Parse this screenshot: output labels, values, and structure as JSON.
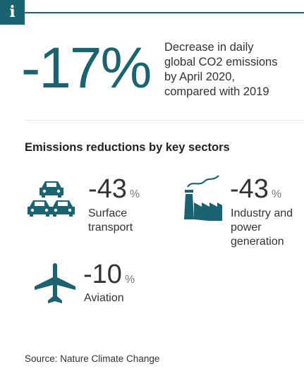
{
  "header": {
    "info_glyph": "i"
  },
  "headline": {
    "value": "-17%",
    "description_lines": [
      "Decrease in daily",
      "global CO2 emissions",
      "by April 2020,",
      "compared with 2019"
    ]
  },
  "sectors_heading": "Emissions reductions by key sectors",
  "sectors": [
    {
      "icon": "cars-icon",
      "value": "-43",
      "unit": "%",
      "label_lines": [
        "Surface",
        "transport"
      ]
    },
    {
      "icon": "factory-icon",
      "value": "-43",
      "unit": "%",
      "label_lines": [
        "Industry and",
        "power",
        "generation"
      ]
    },
    {
      "icon": "airplane-icon",
      "value": "-10",
      "unit": "%",
      "label_lines": [
        "Aviation"
      ]
    }
  ],
  "source": "Source: Nature Climate Change",
  "colors": {
    "accent": "#1c6372",
    "text": "#333333",
    "divider": "#e6e6e6"
  }
}
